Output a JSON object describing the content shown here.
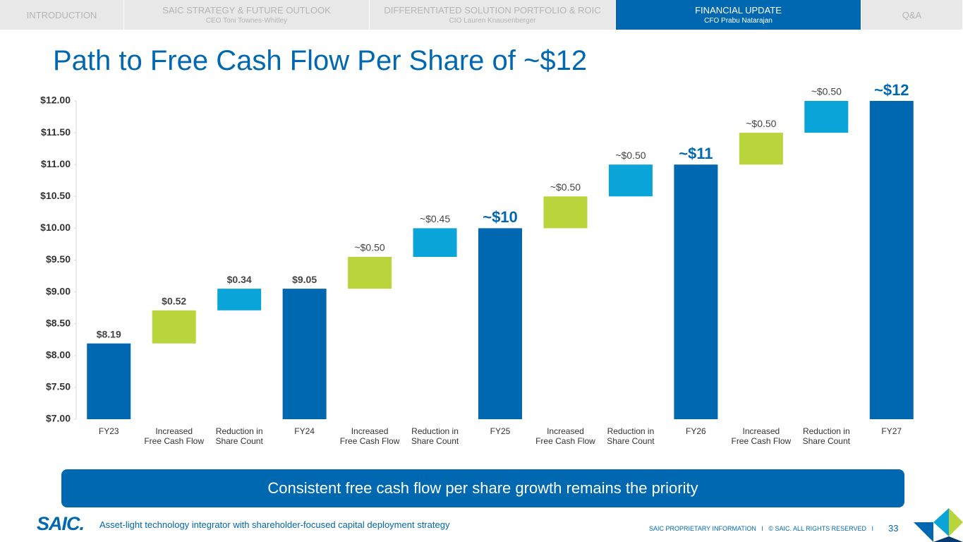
{
  "nav": [
    {
      "title": "INTRODUCTION"
    },
    {
      "title": "SAIC STRATEGY & FUTURE OUTLOOK",
      "subtitle": "CEO Toni Townes-Whitley"
    },
    {
      "title": "DIFFERENTIATED SOLUTION PORTFOLIO & ROIC",
      "subtitle": "CIO Lauren Knausenberger"
    },
    {
      "title": "FINANCIAL UPDATE",
      "subtitle": "CFO Prabu Natarajan",
      "active": true
    },
    {
      "title": "Q&A"
    }
  ],
  "title": "Path to Free Cash Flow Per Share of ~$12",
  "chart_data": {
    "type": "waterfall",
    "categories": [
      "FY23",
      "Increased\nFree Cash Flow",
      "Reduction in\nShare Count",
      "FY24",
      "Increased\nFree Cash Flow",
      "Reduction in\nShare Count",
      "FY25",
      "Increased\nFree Cash Flow",
      "Reduction in\nShare Count",
      "FY26",
      "Increased\nFree Cash Flow",
      "Reduction in\nShare Count",
      "FY27"
    ],
    "measure": [
      "absolute",
      "relative",
      "relative",
      "absolute",
      "relative",
      "relative",
      "absolute",
      "relative",
      "relative",
      "absolute",
      "relative",
      "relative",
      "absolute"
    ],
    "values": [
      8.19,
      0.52,
      0.34,
      9.05,
      0.5,
      0.45,
      10,
      0.5,
      0.5,
      11,
      0.5,
      0.5,
      12
    ],
    "value_labels": [
      "$8.19",
      "$0.52",
      "$0.34",
      "$9.05",
      "~$0.50",
      "~$0.45",
      "~$10",
      "~$0.50",
      "~$0.50",
      "~$11",
      "~$0.50",
      "~$0.50",
      "~$12"
    ],
    "bar_colors": [
      "#0067b1",
      "#b9d53b",
      "#0aa4d9",
      "#0067b1",
      "#b9d53b",
      "#0aa4d9",
      "#0067b1",
      "#b9d53b",
      "#0aa4d9",
      "#0067b1",
      "#b9d53b",
      "#0aa4d9",
      "#0067b1"
    ],
    "ylim": [
      7,
      12
    ],
    "yticks": [
      {
        "value": 7,
        "label": "$7.00"
      },
      {
        "value": 7.5,
        "label": "$7.50"
      },
      {
        "value": 8,
        "label": "$8.00"
      },
      {
        "value": 8.5,
        "label": "$8.50"
      },
      {
        "value": 9,
        "label": "$9.00"
      },
      {
        "value": 9.5,
        "label": "$9.50"
      },
      {
        "value": 10,
        "label": "$10.00"
      },
      {
        "value": 10.5,
        "label": "$10.50"
      },
      {
        "value": 11,
        "label": "$11.00"
      },
      {
        "value": 11.5,
        "label": "$11.50"
      },
      {
        "value": 12,
        "label": "$12.00"
      }
    ],
    "grid": false
  },
  "banner": "Consistent free cash flow per share growth remains the priority",
  "footer": {
    "logo": "SAIC.",
    "tagline": "Asset-light technology integrator with shareholder-focused capital deployment strategy",
    "notice": "SAIC PROPRIETARY INFORMATION   I   © SAIC. ALL RIGHTS RESERVED   I",
    "page": "33"
  }
}
